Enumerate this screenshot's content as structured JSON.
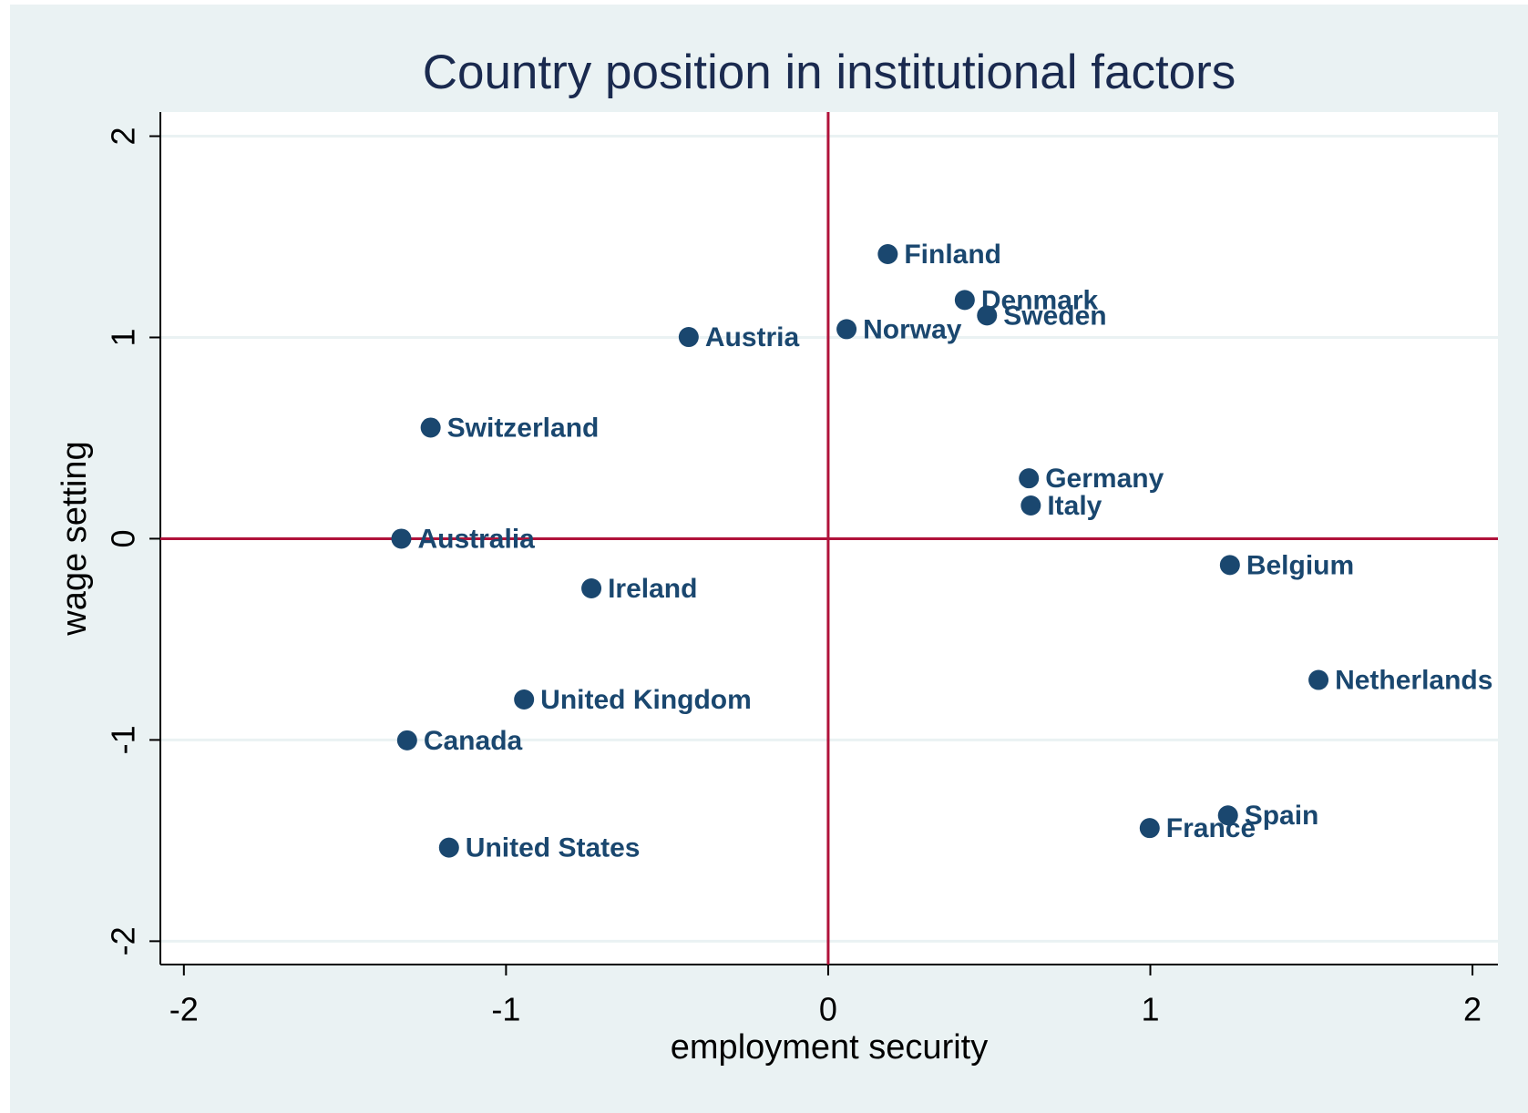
{
  "chart_data": {
    "type": "scatter",
    "title": "Country position in institutional factors",
    "xlabel": "employment security",
    "ylabel": "wage setting",
    "labels": [
      "Finland",
      "Denmark",
      "Sweden",
      "Norway",
      "Austria",
      "Switzerland",
      "Germany",
      "Italy",
      "Australia",
      "Belgium",
      "Ireland",
      "Netherlands",
      "United Kingdom",
      "Canada",
      "Spain",
      "France",
      "United States"
    ],
    "x": [
      0.185,
      0.424,
      0.493,
      0.057,
      -0.433,
      -1.234,
      0.623,
      0.629,
      -1.325,
      1.247,
      -0.735,
      1.522,
      -0.944,
      -1.307,
      1.241,
      0.998,
      -1.177
    ],
    "values": [
      1.414,
      1.186,
      1.109,
      1.041,
      1.002,
      0.552,
      0.3,
      0.165,
      0.0,
      -0.131,
      -0.247,
      -0.702,
      -0.799,
      -1.002,
      -1.375,
      -1.438,
      -1.535
    ],
    "color": "#1a476f",
    "xlim": [
      -2.073,
      2.079
    ],
    "ylim": [
      -2.116,
      2.12
    ],
    "xticks": [
      -2,
      -1,
      0,
      1,
      2
    ],
    "yticks": [
      -2,
      -1,
      0,
      1,
      2
    ],
    "grid": true,
    "reference_lines": {
      "x": 0,
      "y": 0,
      "color": "#b0123a"
    }
  }
}
